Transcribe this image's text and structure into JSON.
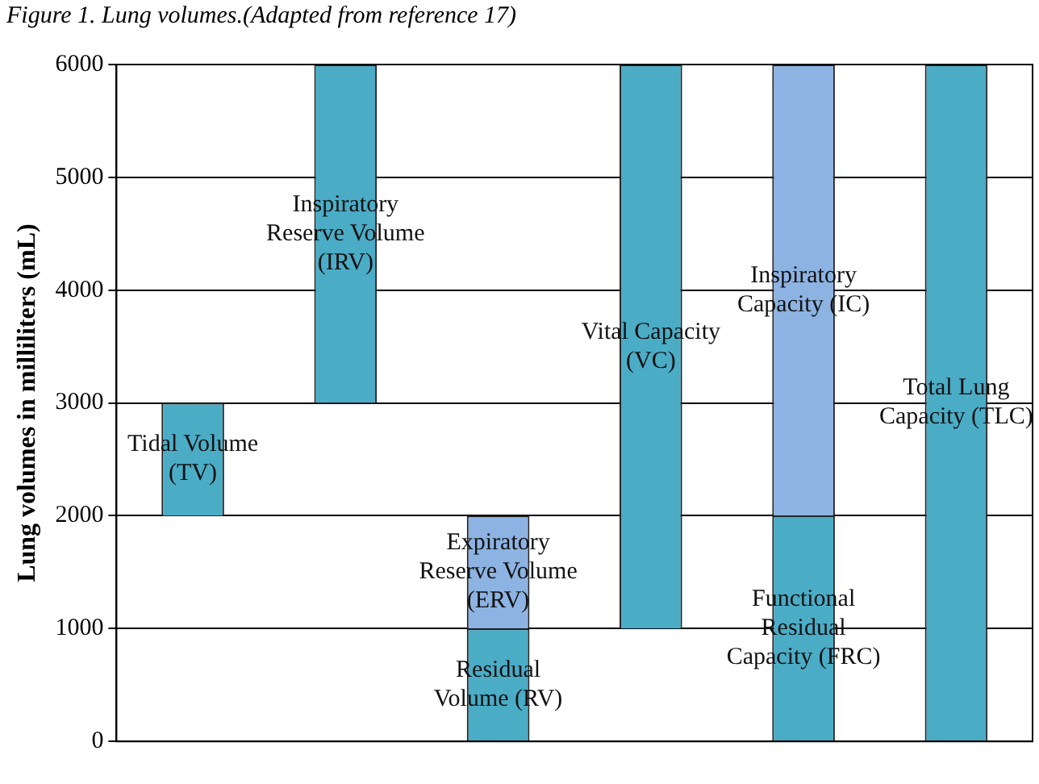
{
  "chart_data": {
    "type": "bar",
    "title": "Figure 1. Lung volumes.(Adapted from reference 17)",
    "ylabel": "Lung volumes in milliliters (mL)",
    "categories": [
      null,
      null,
      null,
      null,
      null,
      null
    ],
    "series": [
      {
        "color": "#4bacc6",
        "base": [
          2000,
          3000,
          0,
          1000,
          0,
          0
        ],
        "values": [
          1000,
          3000,
          1000,
          5000,
          2000,
          6000
        ],
        "value_labels": [
          "Tidal Volume\n(TV)",
          "Inspiratory\nReserve Volume\n(IRV)",
          "Residual\nVolume (RV)",
          "Vital Capacity\n(VC)",
          "Functional\nResidual\nCapacity (FRC)",
          "Total Lung\nCapacity (TLC)"
        ]
      },
      {
        "color": "#8db3e2",
        "base": [
          null,
          null,
          1000,
          null,
          2000,
          null
        ],
        "values": [
          null,
          null,
          1000,
          null,
          4000,
          null
        ],
        "value_labels": [
          null,
          null,
          "Expiratory\nReserve Volume\n(ERV)",
          null,
          "Inspiratory\nCapacity (IC)",
          null
        ]
      }
    ],
    "ylim": [
      0,
      6000
    ],
    "yticks": [
      0,
      1000,
      2000,
      3000,
      4000,
      5000,
      6000
    ],
    "grid": "y",
    "legend": false
  }
}
